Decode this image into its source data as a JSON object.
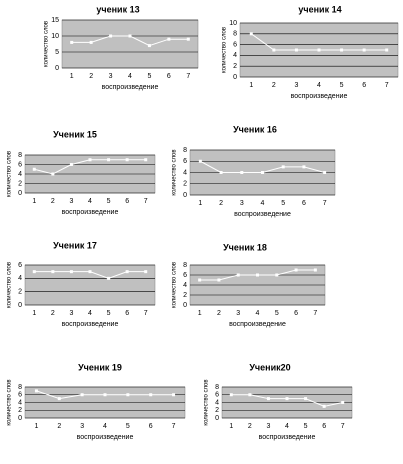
{
  "chart_data": [
    {
      "type": "line",
      "title": "ученик 13",
      "y_label": "количество слов",
      "x_label": "воспроизведение",
      "categories": [
        "1",
        "2",
        "3",
        "4",
        "5",
        "6",
        "7"
      ],
      "values": [
        8,
        8,
        10,
        10,
        7,
        9,
        9
      ],
      "ylim": [
        0,
        15
      ],
      "yticks": [
        0,
        5,
        10,
        15
      ],
      "grid": true,
      "color": "#ffffff",
      "background": "#c0c0c0"
    },
    {
      "type": "line",
      "title": "ученик 14",
      "y_label": "количество слов",
      "x_label": "воспроизведение",
      "categories": [
        "1",
        "2",
        "3",
        "4",
        "5",
        "6",
        "7"
      ],
      "values": [
        8,
        5,
        5,
        5,
        5,
        5,
        5
      ],
      "ylim": [
        0,
        10
      ],
      "yticks": [
        0,
        2,
        4,
        6,
        8,
        10
      ],
      "grid": true,
      "color": "#ffffff",
      "background": "#c0c0c0"
    },
    {
      "type": "line",
      "title": "Ученик 15",
      "y_label": "количество слов",
      "x_label": "воспроизведение",
      "categories": [
        "1",
        "2",
        "3",
        "4",
        "5",
        "6",
        "7"
      ],
      "values": [
        5,
        4,
        6,
        7,
        7,
        7,
        7
      ],
      "ylim": [
        0,
        8
      ],
      "yticks": [
        0,
        2,
        4,
        6,
        8
      ],
      "grid": true,
      "color": "#ffffff",
      "background": "#c0c0c0"
    },
    {
      "type": "line",
      "title": "Ученик 16",
      "y_label": "количество слов",
      "x_label": "воспроизведение",
      "categories": [
        "1",
        "2",
        "3",
        "4",
        "5",
        "6",
        "7"
      ],
      "values": [
        6,
        4,
        4,
        4,
        5,
        5,
        4
      ],
      "ylim": [
        0,
        8
      ],
      "yticks": [
        0,
        2,
        4,
        6,
        8
      ],
      "grid": true,
      "color": "#ffffff",
      "background": "#c0c0c0"
    },
    {
      "type": "line",
      "title": "Ученик 17",
      "y_label": "количество слов",
      "x_label": "воспроизведение",
      "categories": [
        "1",
        "2",
        "3",
        "4",
        "5",
        "6",
        "7"
      ],
      "values": [
        5,
        5,
        5,
        5,
        4,
        5,
        5
      ],
      "ylim": [
        0,
        6
      ],
      "yticks": [
        0,
        2,
        4,
        6
      ],
      "grid": true,
      "color": "#ffffff",
      "background": "#c0c0c0"
    },
    {
      "type": "line",
      "title": "Ученик 18",
      "y_label": "количество слов",
      "x_label": "воспроизведение",
      "categories": [
        "1",
        "2",
        "3",
        "4",
        "5",
        "6",
        "7"
      ],
      "values": [
        5,
        5,
        6,
        6,
        6,
        7,
        7
      ],
      "ylim": [
        0,
        8
      ],
      "yticks": [
        0,
        2,
        4,
        6,
        8
      ],
      "grid": true,
      "color": "#ffffff",
      "background": "#c0c0c0"
    },
    {
      "type": "line",
      "title": "Ученик 19",
      "y_label": "количество слов",
      "x_label": "воспроизведение",
      "categories": [
        "1",
        "2",
        "3",
        "4",
        "5",
        "6",
        "7"
      ],
      "values": [
        7,
        5,
        6,
        6,
        6,
        6,
        6
      ],
      "ylim": [
        0,
        8
      ],
      "yticks": [
        0,
        2,
        4,
        6,
        8
      ],
      "grid": true,
      "color": "#ffffff",
      "background": "#c0c0c0"
    },
    {
      "type": "line",
      "title": "Ученик20",
      "y_label": "количество слов",
      "x_label": "воспроизведение",
      "categories": [
        "1",
        "2",
        "3",
        "4",
        "5",
        "6",
        "7"
      ],
      "values": [
        6,
        6,
        5,
        5,
        5,
        3,
        4
      ],
      "ylim": [
        0,
        8
      ],
      "yticks": [
        0,
        2,
        4,
        6,
        8
      ],
      "grid": true,
      "color": "#ffffff",
      "background": "#c0c0c0"
    }
  ]
}
